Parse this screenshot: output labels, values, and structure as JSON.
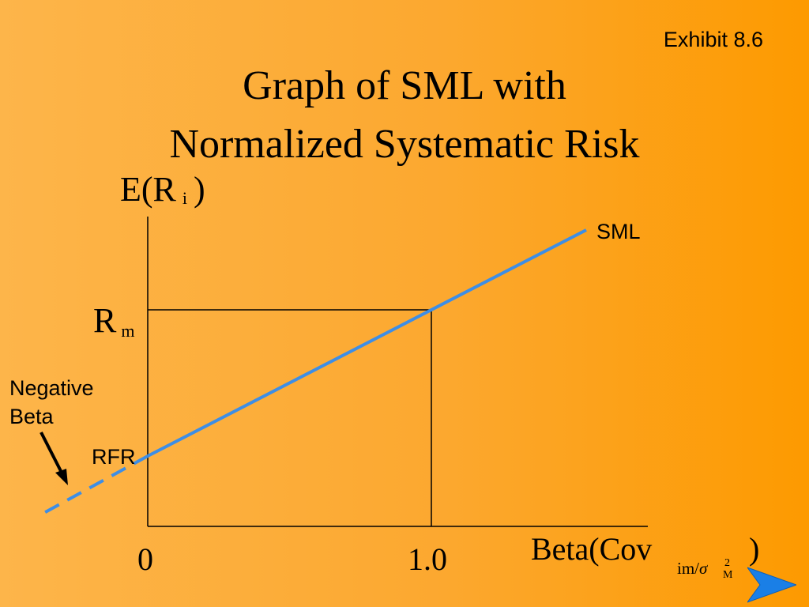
{
  "exhibit": "Exhibit 8.6",
  "title": {
    "line1": "Graph of SML with",
    "line2": "Normalized Systematic Risk"
  },
  "y_axis": {
    "main": "E(R",
    "sub": "i",
    "close": ")"
  },
  "x_axis": {
    "main": "Beta(Cov",
    "sub": "im",
    "slash": "/",
    "sigma": "σ",
    "sigma_sub": "M",
    "sigma_sup": "2",
    "close": ")"
  },
  "ticks": {
    "zero": "0",
    "one": "1.0"
  },
  "rm_label": {
    "main": "R",
    "sub": "m"
  },
  "sml_label": "SML",
  "rfr_label": "RFR",
  "negative_beta": {
    "line1": "Negative",
    "line2": "Beta"
  },
  "colors": {
    "sml_line": "#3d8ee6",
    "axes": "#000000",
    "arrow": "#1a7fe6"
  }
}
